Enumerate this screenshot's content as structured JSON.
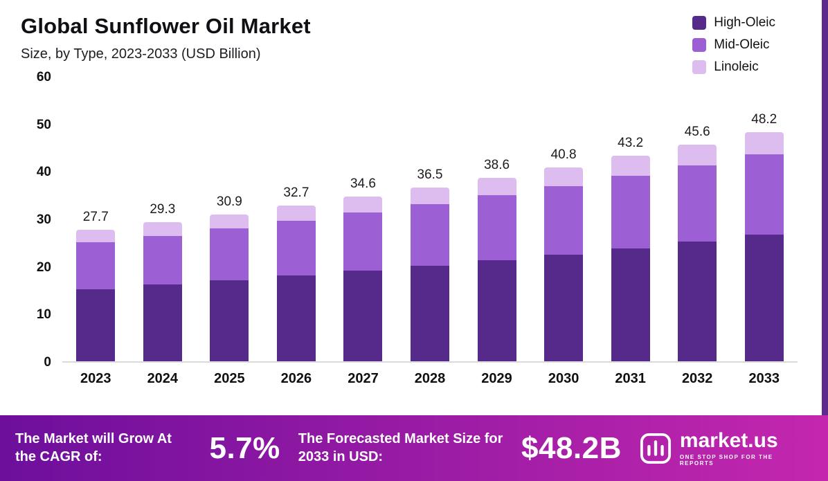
{
  "header": {
    "title": "Global Sunflower Oil Market",
    "subtitle": "Size, by Type, 2023-2033 (USD Billion)"
  },
  "legend": [
    {
      "label": "High-Oleic",
      "color": "#552a8b"
    },
    {
      "label": "Mid-Oleic",
      "color": "#9c5fd4"
    },
    {
      "label": "Linoleic",
      "color": "#ddbcf0"
    }
  ],
  "chart_data": {
    "type": "bar",
    "stacked": true,
    "title": "Global Sunflower Oil Market",
    "subtitle": "Size, by Type, 2023-2033 (USD Billion)",
    "xlabel": "",
    "ylabel": "USD Billion",
    "ylim": [
      0,
      60
    ],
    "yticks": [
      0,
      10,
      20,
      30,
      40,
      50,
      60
    ],
    "grid": false,
    "legend_position": "top-right",
    "categories": [
      "2023",
      "2024",
      "2025",
      "2026",
      "2027",
      "2028",
      "2029",
      "2030",
      "2031",
      "2032",
      "2033"
    ],
    "series": [
      {
        "name": "High-Oleic",
        "color": "#552a8b",
        "values": [
          15.2,
          16.1,
          17.0,
          18.0,
          19.1,
          20.1,
          21.3,
          22.5,
          23.8,
          25.2,
          26.7
        ]
      },
      {
        "name": "Mid-Oleic",
        "color": "#9c5fd4",
        "values": [
          9.9,
          10.3,
          11.0,
          11.6,
          12.2,
          12.9,
          13.6,
          14.4,
          15.2,
          16.0,
          16.9
        ]
      },
      {
        "name": "Linoleic",
        "color": "#ddbcf0",
        "values": [
          2.6,
          2.9,
          2.9,
          3.1,
          3.3,
          3.5,
          3.7,
          3.9,
          4.2,
          4.4,
          4.6
        ]
      }
    ],
    "totals": [
      27.7,
      29.3,
      30.9,
      32.7,
      34.6,
      36.5,
      38.6,
      40.8,
      43.2,
      45.6,
      48.2
    ]
  },
  "banner": {
    "cagr_label": "The Market will Grow At the CAGR of:",
    "cagr_value": "5.7%",
    "forecast_label": "The Forecasted Market Size for 2033 in USD:",
    "forecast_value": "$48.2B",
    "brand": "market.us",
    "brand_tagline": "ONE STOP SHOP FOR THE REPORTS",
    "gradient_start": "#6d0f9c",
    "gradient_end": "#c427ae"
  },
  "decor": {
    "right_strip_color": "#5e2b8d"
  }
}
